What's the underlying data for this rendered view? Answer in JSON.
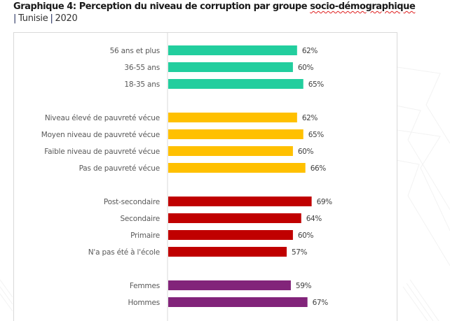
{
  "header": {
    "title_main": "Graphique 4: Perception du niveau de corruption par groupe ",
    "title_underlined": "socio-démographique",
    "subtitle_sep": "|",
    "subtitle_country": "Tunisie",
    "subtitle_year": "2020"
  },
  "chart_data": {
    "type": "bar",
    "orientation": "horizontal",
    "title": "Graphique 4: Perception du niveau de corruption par groupe socio-démographique | Tunisie | 2020",
    "xlabel": "",
    "ylabel": "",
    "xlim": [
      0,
      100
    ],
    "grid": false,
    "unit": "%",
    "groups": [
      {
        "name": "age",
        "color": "#22CE9E",
        "categories": [
          "56 ans et plus",
          "36-55 ans",
          "18-35 ans"
        ],
        "values": [
          62,
          60,
          65
        ],
        "labels": [
          "62%",
          "60%",
          "65%"
        ]
      },
      {
        "name": "pauvrete",
        "color": "#FFC000",
        "categories": [
          "Niveau élevé de pauvreté vécue",
          "Moyen niveau de pauvreté vécue",
          "Faible niveau de pauvreté vécue",
          "Pas de pauvreté vécue"
        ],
        "values": [
          62,
          65,
          60,
          66
        ],
        "labels": [
          "62%",
          "65%",
          "60%",
          "66%"
        ]
      },
      {
        "name": "education",
        "color": "#C00000",
        "categories": [
          "Post-secondaire",
          "Secondaire",
          "Primaire",
          "N'a pas été à l'école"
        ],
        "values": [
          69,
          64,
          60,
          57
        ],
        "labels": [
          "69%",
          "64%",
          "60%",
          "57%"
        ]
      },
      {
        "name": "genre",
        "color": "#82247A",
        "categories": [
          "Femmes",
          "Hommes"
        ],
        "values": [
          59,
          67
        ],
        "labels": [
          "59%",
          "67%"
        ]
      }
    ]
  }
}
